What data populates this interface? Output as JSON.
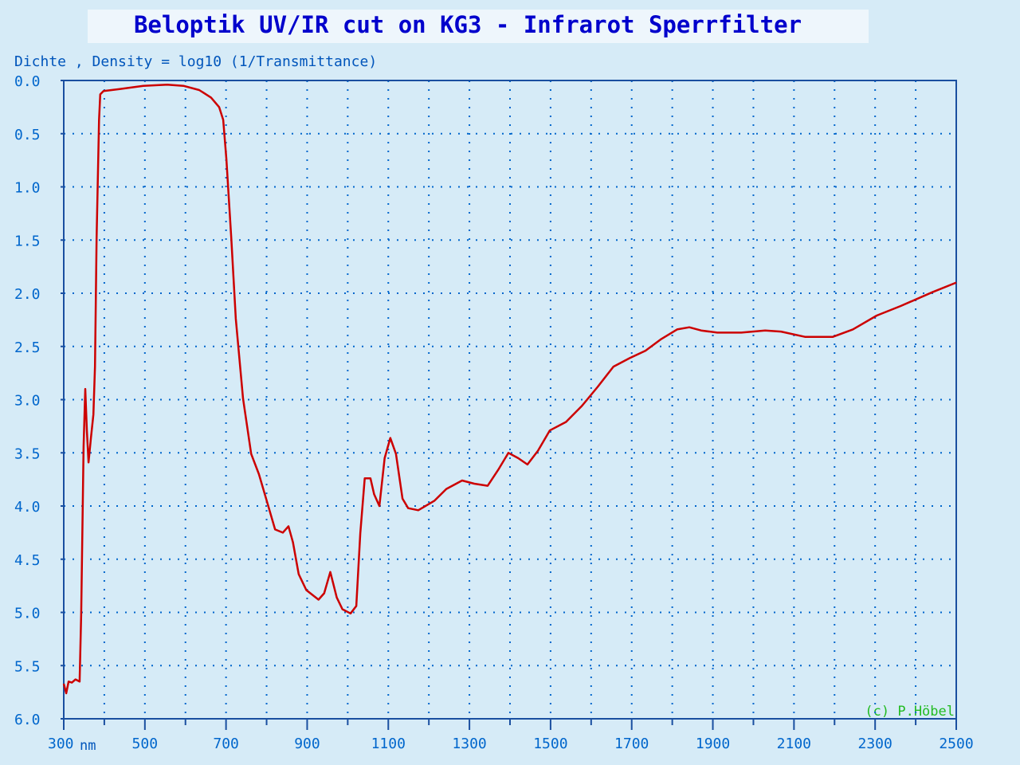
{
  "chart_data": {
    "type": "line",
    "title": "Beloptik UV/IR cut on KG3 - Infrarot Sperrfilter",
    "y_label": "Dichte , Density = log10 (1/Transmittance)",
    "x_unit": "nm",
    "annotation": "(c) P.Höbel",
    "color": "#cc0000",
    "invert_y": true,
    "grid": true,
    "xlim": [
      300,
      2500
    ],
    "ylim": [
      0,
      6
    ],
    "xticks": [
      300,
      500,
      700,
      900,
      1100,
      1300,
      1500,
      1700,
      1900,
      2100,
      2300,
      2500
    ],
    "x_minor_ticks": [
      400,
      600,
      800,
      1000,
      1200,
      1400,
      1600,
      1800,
      2000,
      2200,
      2400
    ],
    "yticks": [
      {
        "value": 0,
        "label": "0.0"
      },
      0.5,
      {
        "value": 1,
        "label": "1.0"
      },
      1.5,
      {
        "value": 2,
        "label": "2.0"
      },
      2.5,
      {
        "value": 3,
        "label": "3.0"
      },
      3.5,
      {
        "value": 4,
        "label": "4.0"
      },
      4.5,
      {
        "value": 5,
        "label": "5.0"
      },
      5.5,
      {
        "value": 6,
        "label": "6.0"
      }
    ],
    "x": [
      300,
      306,
      312,
      320,
      329,
      339,
      343,
      349,
      353,
      357,
      361,
      367,
      373,
      377,
      381,
      387,
      390,
      398,
      438,
      496,
      555,
      595,
      634,
      663,
      683,
      693,
      701,
      713,
      724,
      742,
      762,
      781,
      801,
      821,
      840,
      854,
      865,
      879,
      898,
      928,
      942,
      957,
      973,
      987,
      1007,
      1021,
      1031,
      1042,
      1056,
      1065,
      1078,
      1091,
      1105,
      1119,
      1135,
      1149,
      1174,
      1214,
      1243,
      1282,
      1312,
      1345,
      1371,
      1396,
      1420,
      1443,
      1469,
      1498,
      1538,
      1577,
      1616,
      1655,
      1695,
      1734,
      1773,
      1812,
      1842,
      1871,
      1911,
      1970,
      2029,
      2068,
      2127,
      2196,
      2245,
      2304,
      2363,
      2441,
      2500
    ],
    "values": [
      5.67,
      5.76,
      5.65,
      5.66,
      5.63,
      5.65,
      5.01,
      3.44,
      2.9,
      3.29,
      3.59,
      3.36,
      3.14,
      2.69,
      1.49,
      0.37,
      0.13,
      0.1,
      0.08,
      0.05,
      0.04,
      0.05,
      0.09,
      0.16,
      0.25,
      0.37,
      0.74,
      1.49,
      2.24,
      2.99,
      3.51,
      3.7,
      3.96,
      4.22,
      4.25,
      4.19,
      4.34,
      4.64,
      4.79,
      4.88,
      4.82,
      4.62,
      4.86,
      4.97,
      5.01,
      4.94,
      4.26,
      3.74,
      3.74,
      3.89,
      4.0,
      3.55,
      3.36,
      3.51,
      3.93,
      4.02,
      4.04,
      3.95,
      3.84,
      3.76,
      3.79,
      3.81,
      3.66,
      3.5,
      3.55,
      3.61,
      3.48,
      3.29,
      3.21,
      3.06,
      2.88,
      2.69,
      2.61,
      2.54,
      2.43,
      2.34,
      2.32,
      2.35,
      2.37,
      2.37,
      2.35,
      2.36,
      2.41,
      2.41,
      2.34,
      2.21,
      2.12,
      1.99,
      1.9
    ]
  }
}
